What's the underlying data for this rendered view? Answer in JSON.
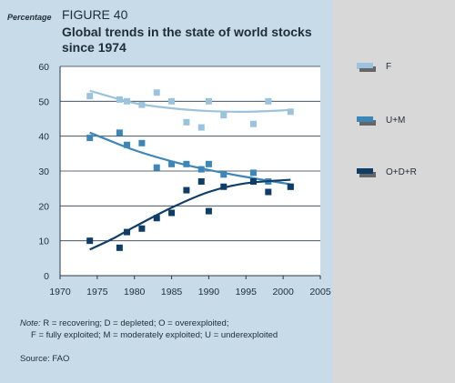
{
  "header": {
    "ylabel": "Percentage",
    "figure_number": "FIGURE 40",
    "title": "Global trends in the state of world stocks since 1974"
  },
  "note": {
    "prefix": "Note:",
    "line1": " R = recovering; D = depleted; O = overexploited;",
    "line2": "F = fully exploited; M = moderately exploited; U = underexploited"
  },
  "source": "Source: FAO",
  "colors": {
    "F": "#9cc3dd",
    "U+M": "#3c86b8",
    "O+D+R": "#0e3d68",
    "plot_bg": "#ffffff"
  },
  "chart_data": {
    "type": "scatter",
    "title": "Global trends in the state of world stocks since 1974",
    "xlabel": "",
    "ylabel": "Percentage",
    "xlim": [
      1970,
      2005
    ],
    "ylim": [
      0,
      60
    ],
    "xticks": [
      1970,
      1975,
      1980,
      1985,
      1990,
      1995,
      2000,
      2005
    ],
    "yticks": [
      0,
      10,
      20,
      30,
      40,
      50,
      60
    ],
    "grid": "horizontal",
    "legend": "right",
    "series": [
      {
        "name": "F",
        "points": [
          [
            1974,
            51.5
          ],
          [
            1978,
            50.5
          ],
          [
            1979,
            50
          ],
          [
            1981,
            49
          ],
          [
            1983,
            52.5
          ],
          [
            1985,
            50
          ],
          [
            1987,
            44
          ],
          [
            1989,
            42.5
          ],
          [
            1990,
            50
          ],
          [
            1992,
            46
          ],
          [
            1996,
            43.5
          ],
          [
            1998,
            50
          ],
          [
            2001,
            47
          ]
        ],
        "trend": [
          [
            1974,
            53
          ],
          [
            1980,
            49.5
          ],
          [
            1985,
            48
          ],
          [
            1990,
            47.2
          ],
          [
            1995,
            47
          ],
          [
            2001,
            47.5
          ]
        ]
      },
      {
        "name": "U+M",
        "points": [
          [
            1974,
            39.5
          ],
          [
            1978,
            41
          ],
          [
            1979,
            37.5
          ],
          [
            1981,
            38
          ],
          [
            1983,
            31
          ],
          [
            1985,
            32
          ],
          [
            1987,
            32
          ],
          [
            1989,
            30.5
          ],
          [
            1990,
            32
          ],
          [
            1992,
            29
          ],
          [
            1996,
            29.5
          ],
          [
            1998,
            27
          ],
          [
            2001,
            25.5
          ]
        ],
        "trend": [
          [
            1974,
            41
          ],
          [
            1980,
            36
          ],
          [
            1985,
            32.8
          ],
          [
            1990,
            30.3
          ],
          [
            1995,
            28.3
          ],
          [
            2001,
            26.2
          ]
        ]
      },
      {
        "name": "O+D+R",
        "points": [
          [
            1974,
            10
          ],
          [
            1978,
            8
          ],
          [
            1979,
            12.5
          ],
          [
            1981,
            13.5
          ],
          [
            1983,
            16.5
          ],
          [
            1985,
            18
          ],
          [
            1987,
            24.5
          ],
          [
            1989,
            27
          ],
          [
            1990,
            18.5
          ],
          [
            1992,
            25.5
          ],
          [
            1996,
            27
          ],
          [
            1998,
            24
          ],
          [
            2001,
            25.5
          ]
        ],
        "trend": [
          [
            1974,
            7.5
          ],
          [
            1977,
            10.5
          ],
          [
            1980,
            14
          ],
          [
            1985,
            19.5
          ],
          [
            1990,
            24
          ],
          [
            1995,
            26.5
          ],
          [
            2001,
            27.5
          ]
        ]
      }
    ]
  }
}
